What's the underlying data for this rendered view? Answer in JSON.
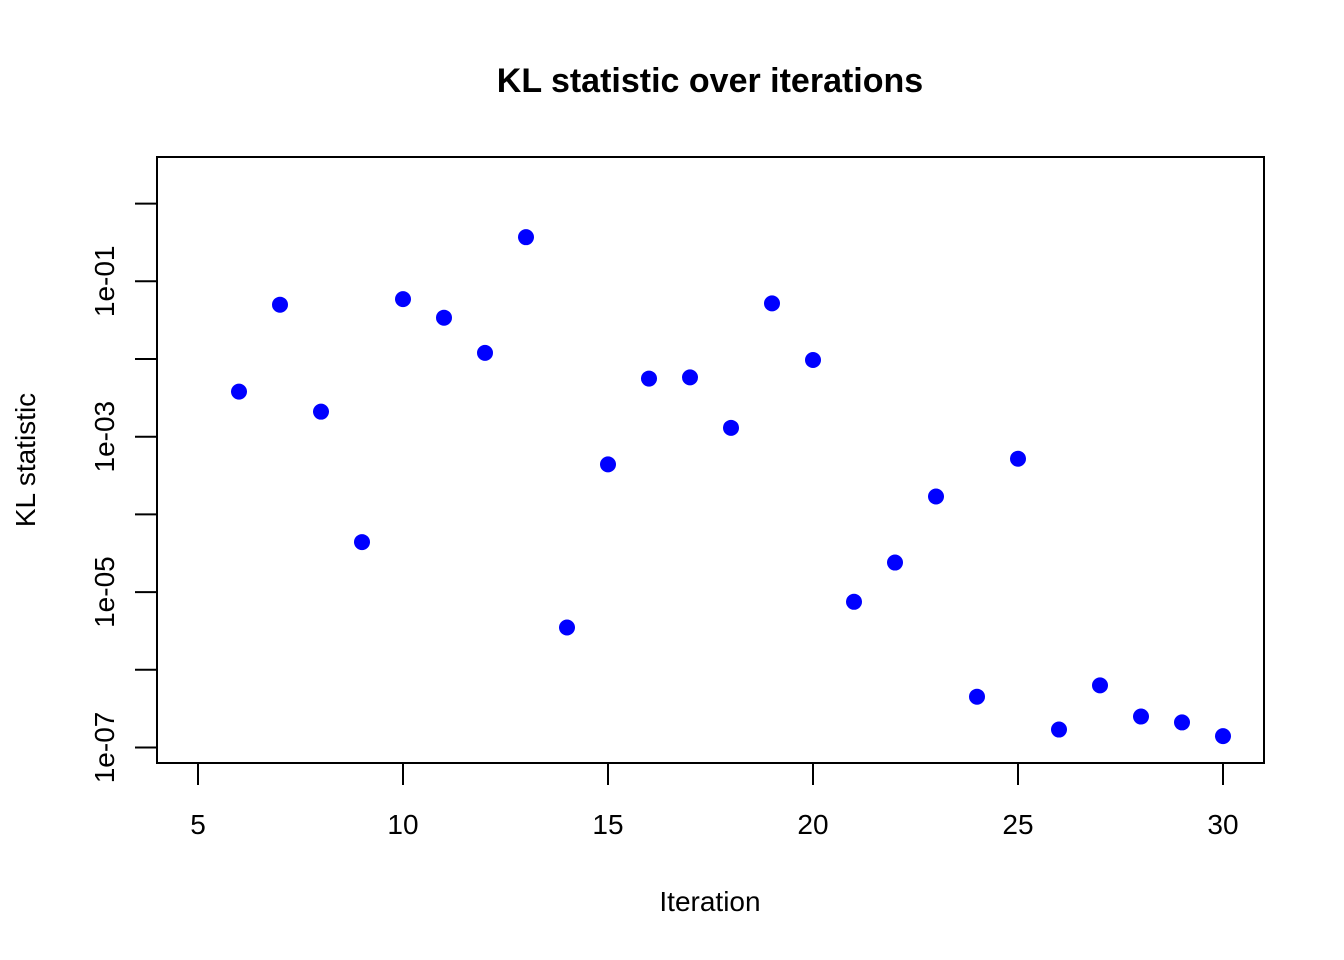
{
  "chart_data": {
    "type": "scatter",
    "title": "KL statistic over iterations",
    "xlabel": "Iteration",
    "ylabel": "KL statistic",
    "xlim": [
      4,
      31
    ],
    "ylim_log10": [
      -7.2,
      0.6
    ],
    "y_scale": "log",
    "x_ticks": [
      5,
      10,
      15,
      20,
      25,
      30
    ],
    "x_tick_labels": [
      "5",
      "10",
      "15",
      "20",
      "25",
      "30"
    ],
    "y_ticks": [
      0.1,
      0.001,
      1e-05,
      1e-07
    ],
    "y_tick_labels": [
      "1e-01",
      "1e-03",
      "1e-05",
      "1e-07"
    ],
    "y_minor_ticks": [
      1,
      0.01,
      0.0001,
      1e-06
    ],
    "grid": false,
    "legend": "none",
    "point_color": "#0000ff",
    "series": [
      {
        "x": [
          6,
          7,
          8,
          9,
          10,
          11,
          12,
          13,
          14,
          15,
          16,
          17,
          18,
          19,
          20,
          21,
          22,
          23,
          24,
          25,
          26,
          27,
          28,
          29,
          30
        ],
        "y": [
          0.0038,
          0.05,
          0.0021,
          4.4e-05,
          0.059,
          0.034,
          0.012,
          0.37,
          3.5e-06,
          0.00044,
          0.0056,
          0.0058,
          0.0013,
          0.052,
          0.0097,
          7.5e-06,
          2.4e-05,
          0.00017,
          4.5e-07,
          0.00052,
          1.7e-07,
          6.3e-07,
          2.5e-07,
          2.1e-07,
          1.4e-07
        ]
      }
    ]
  }
}
